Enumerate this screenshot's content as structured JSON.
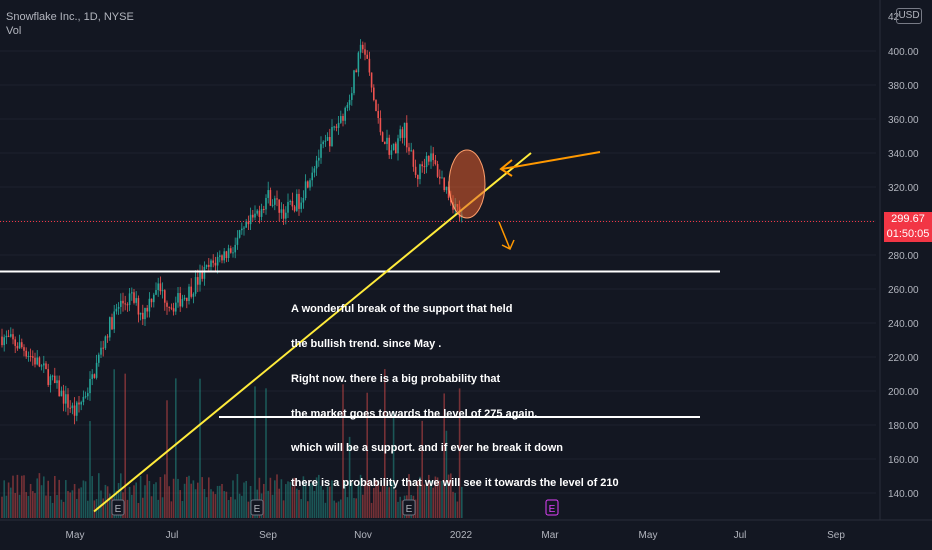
{
  "header": {
    "symbol_line": "Snowflake Inc., 1D, NYSE",
    "volume_label": "Vol",
    "currency": "USD",
    "top_tick_partial": "42"
  },
  "price_badge": {
    "price": "299.67",
    "countdown": "01:50:05"
  },
  "annotation": {
    "lines": [
      "A wonderful break of the support that held",
      "the bullish trend. since May .",
      "Right now. there is a big probability that",
      "the market goes towards the level of 275 again.",
      "which will be a support. and if ever he break it down",
      "there is a probability that we will see it towards the level of 210"
    ]
  },
  "colors": {
    "background": "#131722",
    "up": "#26a69a",
    "down": "#ef5350",
    "trendline": "#ffeb3b",
    "horizontal_lines": "#ffffff",
    "arrow": "#ff9800",
    "ellipse_fill": "#e35d2b",
    "price_line": "#f23645"
  },
  "chart_data": {
    "type": "candlestick",
    "y_ticks": [
      "400.00",
      "380.00",
      "360.00",
      "340.00",
      "320.00",
      "300.00",
      "280.00",
      "260.00",
      "240.00",
      "220.00",
      "200.00",
      "180.00",
      "160.00",
      "140.00"
    ],
    "x_ticks": [
      "May",
      "Jul",
      "Sep",
      "Nov",
      "2022",
      "Mar",
      "May",
      "Jul",
      "Sep"
    ],
    "ylim": [
      130,
      425
    ],
    "current_price": 299.67,
    "levels": {
      "support": 275,
      "target": 210
    },
    "trendline": {
      "from": [
        "May",
        185
      ],
      "to": [
        "after 2022",
        360
      ]
    },
    "series": [
      {
        "name": "Price",
        "close_path": [
          [
            "Apr",
            232
          ],
          [
            "Apr",
            225
          ],
          [
            "Apr",
            215
          ],
          [
            "May",
            200
          ],
          [
            "May",
            187
          ],
          [
            "May",
            205
          ],
          [
            "Jun",
            235
          ],
          [
            "Jun",
            250
          ],
          [
            "Jun",
            255
          ],
          [
            "Jun",
            245
          ],
          [
            "Jul",
            262
          ],
          [
            "Jul",
            250
          ],
          [
            "Jul",
            258
          ],
          [
            "Aug",
            268
          ],
          [
            "Aug",
            278
          ],
          [
            "Aug",
            285
          ],
          [
            "Sep",
            300
          ],
          [
            "Sep",
            315
          ],
          [
            "Sep",
            305
          ],
          [
            "Oct",
            312
          ],
          [
            "Oct",
            335
          ],
          [
            "Oct",
            350
          ],
          [
            "Nov",
            368
          ],
          [
            "Nov",
            405
          ],
          [
            "Nov",
            355
          ],
          [
            "Dec",
            340
          ],
          [
            "Dec",
            355
          ],
          [
            "Dec",
            325
          ],
          [
            "Dec",
            340
          ],
          [
            "2022",
            299.67
          ]
        ]
      },
      {
        "name": "Vol"
      }
    ],
    "earnings_markers": [
      "E",
      "E",
      "E",
      "E"
    ],
    "upcoming_earnings_marker": "E"
  }
}
